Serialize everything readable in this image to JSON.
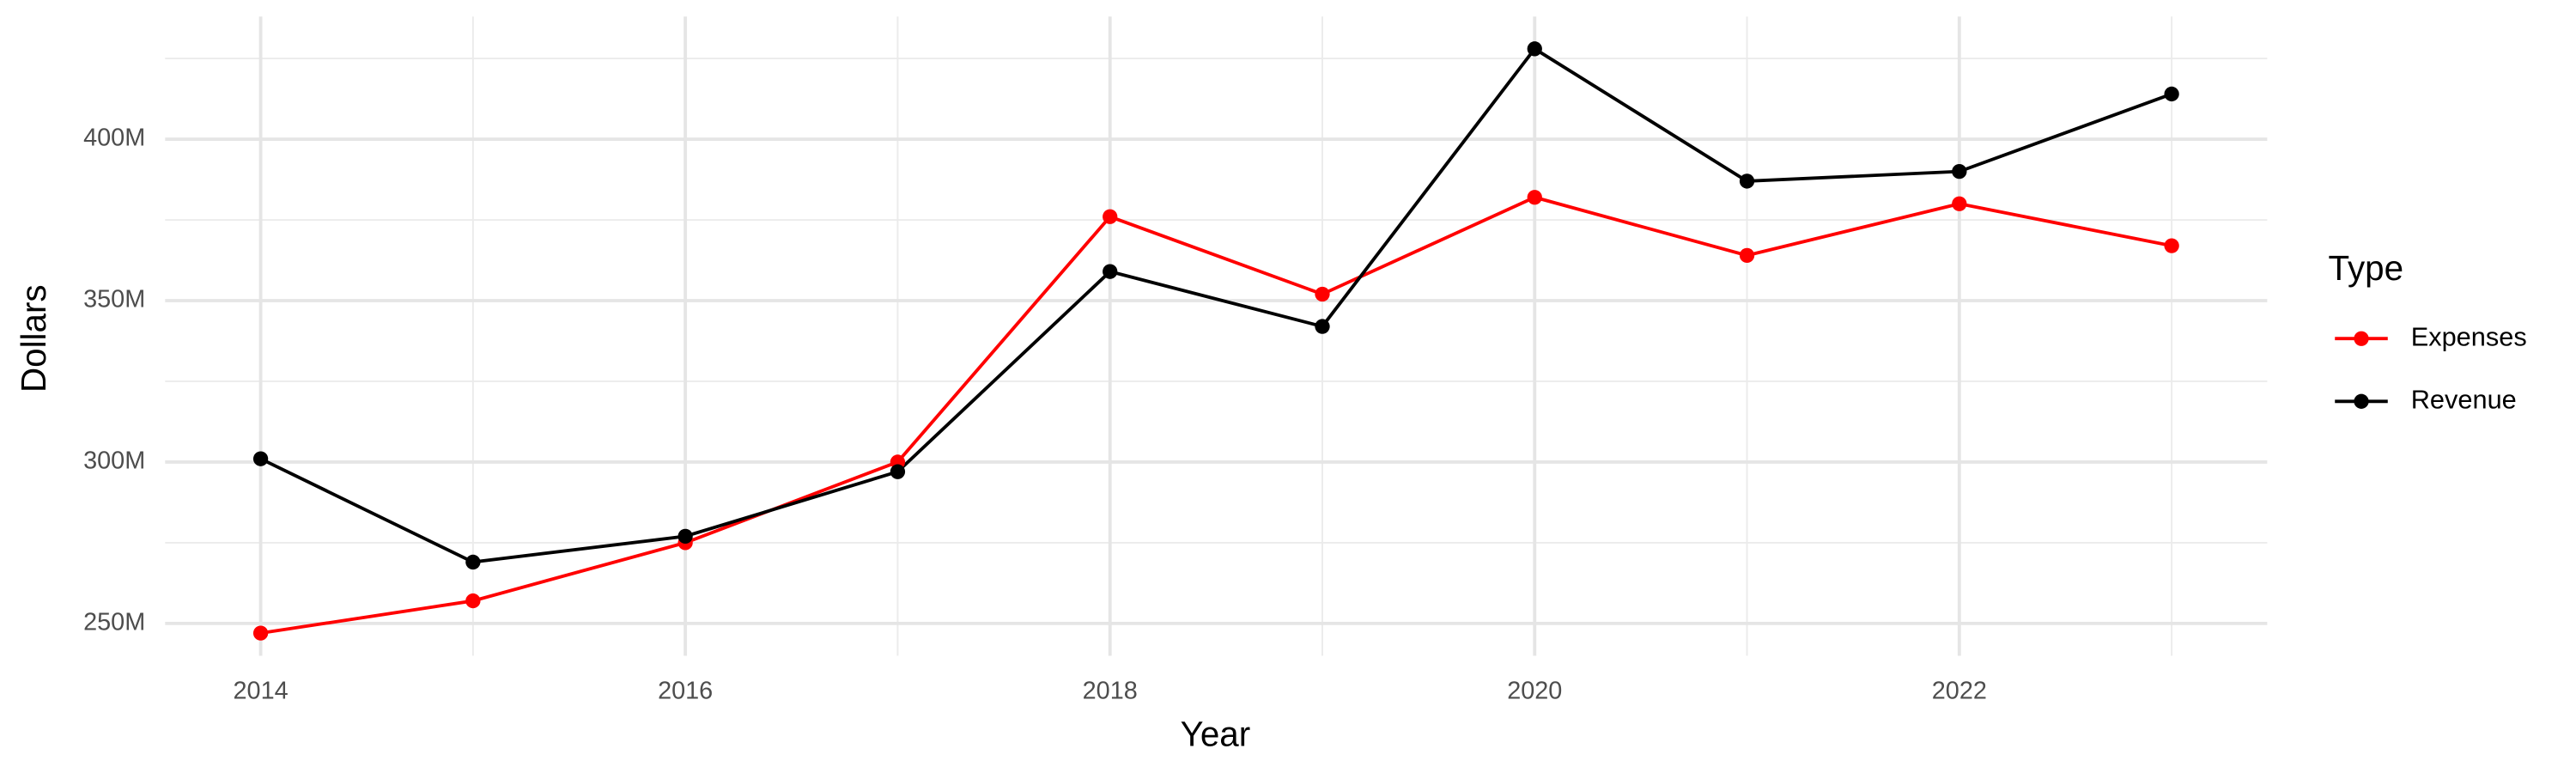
{
  "chart_data": {
    "type": "line",
    "x_label": "Year",
    "y_label": "Dollars",
    "legend_title": "Type",
    "legend": "right",
    "grid": true,
    "x": [
      2014,
      2015,
      2016,
      2017,
      2018,
      2019,
      2020,
      2021,
      2022,
      2023
    ],
    "series": [
      {
        "name": "Expenses",
        "color": "#ff0000",
        "values": [
          247000000,
          257000000,
          275000000,
          300000000,
          376000000,
          352000000,
          382000000,
          364000000,
          380000000,
          367000000
        ]
      },
      {
        "name": "Revenue",
        "color": "#000000",
        "values": [
          301000000,
          269000000,
          277000000,
          297000000,
          359000000,
          342000000,
          428000000,
          387000000,
          390000000,
          414000000
        ]
      }
    ],
    "xlim": [
      2013.55,
      2023.45
    ],
    "xticks": [
      2014,
      2016,
      2018,
      2020,
      2022
    ],
    "ylim": [
      240000000,
      438000000
    ],
    "yticks": [
      {
        "value": 250000000,
        "label": "250M"
      },
      {
        "value": 300000000,
        "label": "300M"
      },
      {
        "value": 350000000,
        "label": "350M"
      },
      {
        "value": 400000000,
        "label": "400M"
      }
    ]
  }
}
